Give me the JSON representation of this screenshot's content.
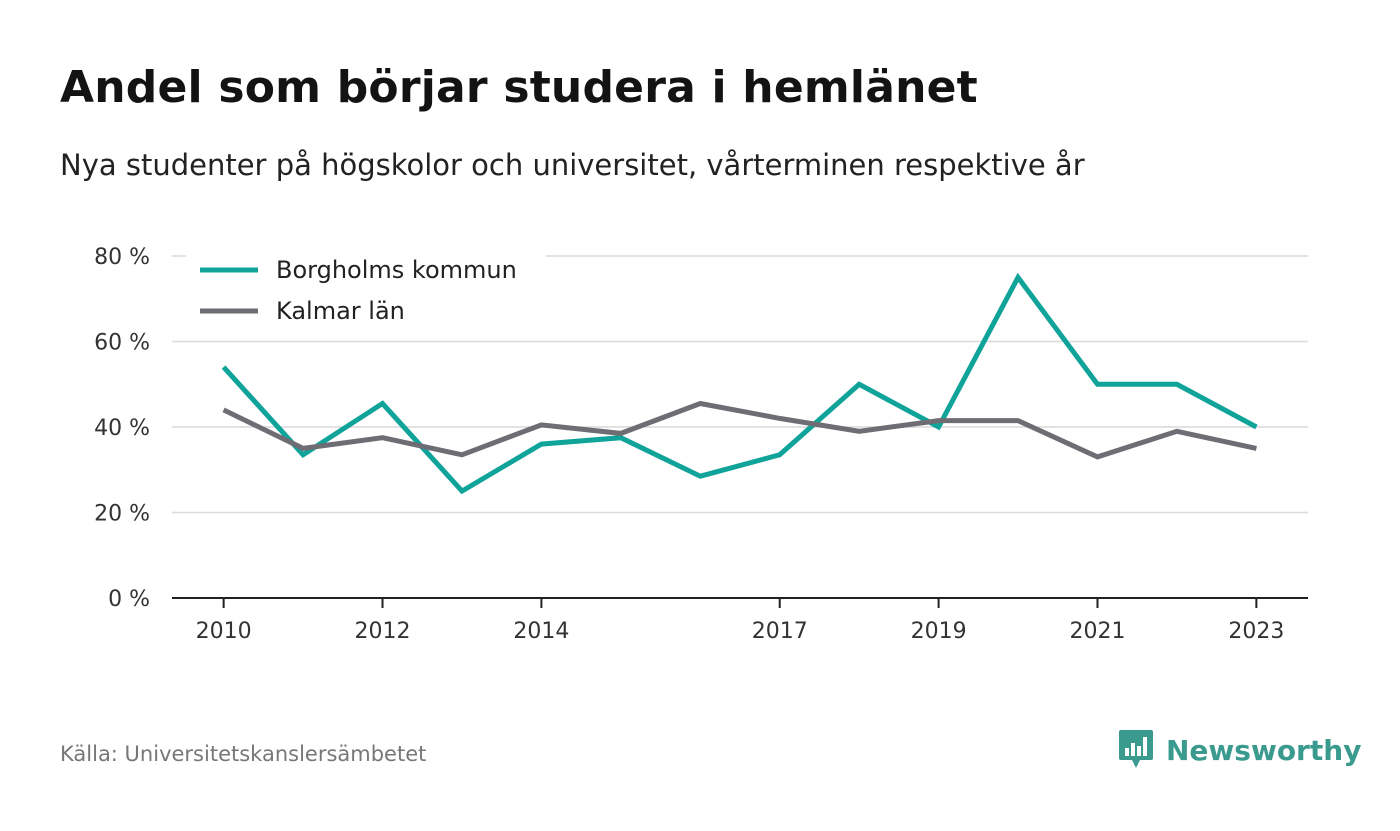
{
  "header": {
    "title": "Andel som börjar studera i hemlänet",
    "subtitle": "Nya studenter på högskolor och universitet, vårterminen respektive år"
  },
  "footer": {
    "source": "Källa: Universitetskanslersämbetet",
    "brand": "Newsworthy"
  },
  "colors": {
    "borgholm": "#0fa39a",
    "kalmar": "#6e6d73",
    "grid": "#d9d9d9",
    "axis": "#222222",
    "brand": "#3a9a8e"
  },
  "chart_data": {
    "type": "line",
    "title": "Andel som börjar studera i hemlänet",
    "subtitle": "Nya studenter på högskolor och universitet, vårterminen respektive år",
    "x": [
      2010,
      2011,
      2012,
      2013,
      2014,
      2015,
      2016,
      2017,
      2018,
      2019,
      2020,
      2021,
      2022,
      2023
    ],
    "xticks": [
      2010,
      2012,
      2014,
      2017,
      2019,
      2021,
      2023
    ],
    "xlim": [
      2009.35,
      2023.65
    ],
    "ylim": [
      0,
      80
    ],
    "yticks": [
      0,
      20,
      40,
      60,
      80
    ],
    "ytick_labels": [
      "0 %",
      "20 %",
      "40 %",
      "60 %",
      "80 %"
    ],
    "grid": "horizontal",
    "legend_position": "top-left",
    "series": [
      {
        "name": "Borgholms kommun",
        "color": "#0fa39a",
        "values": [
          54,
          33.5,
          45.5,
          25,
          36,
          37.5,
          28.5,
          33.5,
          50,
          40,
          75,
          50,
          50,
          40
        ]
      },
      {
        "name": "Kalmar län",
        "color": "#6e6d73",
        "values": [
          44,
          35,
          37.5,
          33.5,
          40.5,
          38.5,
          45.5,
          42,
          39,
          41.5,
          41.5,
          33,
          39,
          35
        ]
      }
    ]
  }
}
